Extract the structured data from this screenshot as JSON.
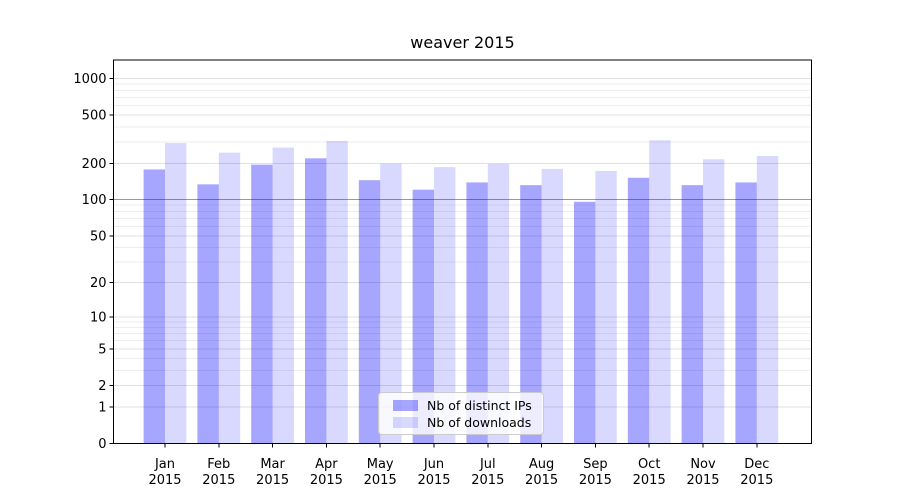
{
  "chart_data": {
    "type": "bar",
    "title": "weaver 2015",
    "categories": [
      "Jan",
      "Feb",
      "Mar",
      "Apr",
      "May",
      "Jun",
      "Jul",
      "Aug",
      "Sep",
      "Oct",
      "Nov",
      "Dec"
    ],
    "x_tick_year": "2015",
    "series": [
      {
        "name": "Nb of distinct IPs",
        "color": "#0000ff59",
        "values": [
          178,
          134,
          195,
          220,
          145,
          121,
          139,
          132,
          96,
          152,
          132,
          139
        ]
      },
      {
        "name": "Nb of downloads",
        "color": "#0000ff26",
        "values": [
          294,
          245,
          270,
          306,
          199,
          186,
          198,
          180,
          173,
          310,
          216,
          230
        ]
      }
    ],
    "y_axis": {
      "scale": "log1p",
      "major_ticks": [
        0,
        1,
        2,
        5,
        10,
        20,
        50,
        100,
        200,
        500,
        1000
      ],
      "minor_gridlines": [
        3,
        4,
        6,
        7,
        8,
        9,
        30,
        40,
        60,
        70,
        80,
        90,
        300,
        400,
        600,
        700,
        800,
        900
      ],
      "emphasized_gridline": 100,
      "range": [
        0,
        1410
      ]
    },
    "grid": true,
    "legend": {
      "position": "lower center"
    },
    "colors": {
      "grid_major": "#e0e0e0",
      "grid_minor": "#eeeeee",
      "grid_emphasis": "#9a9a9a",
      "axis": "#000000",
      "background": "#ffffff"
    }
  }
}
